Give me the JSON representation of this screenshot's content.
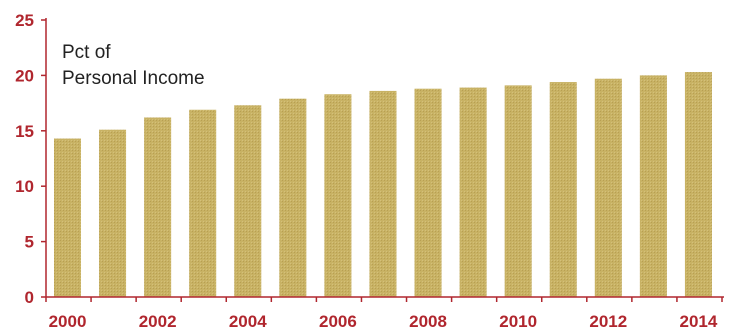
{
  "chart_data": {
    "type": "bar",
    "ylabel_lines": [
      "Pct of",
      "Personal Income"
    ],
    "x_tick_labels": [
      "2000",
      "2002",
      "2004",
      "2006",
      "2008",
      "2010",
      "2012",
      "2014"
    ],
    "categories": [
      "2000",
      "2001",
      "2002",
      "2003",
      "2004",
      "2005",
      "2006",
      "2007",
      "2008",
      "2009",
      "2010",
      "2011",
      "2012",
      "2013",
      "2014"
    ],
    "values": [
      14.3,
      15.1,
      16.2,
      16.9,
      17.3,
      17.9,
      18.3,
      18.6,
      18.8,
      18.9,
      19.1,
      19.4,
      19.7,
      20.0,
      20.3
    ],
    "yticks": [
      "0",
      "5",
      "10",
      "15",
      "20",
      "25"
    ],
    "ylim": [
      0,
      25
    ],
    "grid": false,
    "colors": {
      "bar": "#c8b264",
      "axis": "#b0262e",
      "tick_text": "#b0262e",
      "label_text": "#222222"
    }
  }
}
